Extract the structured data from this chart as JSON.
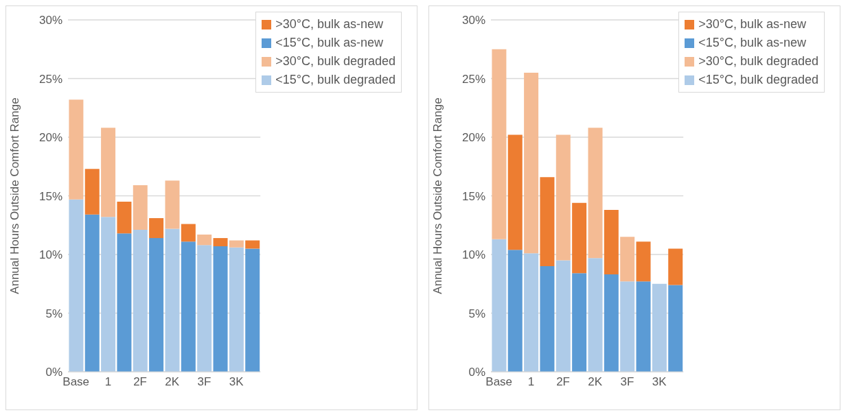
{
  "chart_data": [
    {
      "type": "bar",
      "stacked": true,
      "ylabel": "Annual Hours Outside Comfort Range",
      "categories": [
        "Base",
        null,
        "1",
        null,
        "2F",
        null,
        "2K",
        null,
        "3F",
        null,
        "3K",
        null
      ],
      "ylim": [
        0,
        30
      ],
      "yticks": [
        {
          "value": 0,
          "label": "0%"
        },
        {
          "value": 5,
          "label": "5%"
        },
        {
          "value": 10,
          "label": "10%"
        },
        {
          "value": 15,
          "label": "15%"
        },
        {
          "value": 20,
          "label": "20%"
        },
        {
          "value": 25,
          "label": "25%"
        },
        {
          "value": 30,
          "label": "30%"
        }
      ],
      "grid": "y",
      "legend": "top right",
      "series": [
        {
          "name": "<15°C, bulk degraded",
          "color": "#aecbe8",
          "values": [
            14.7,
            null,
            13.2,
            null,
            12.1,
            null,
            12.2,
            null,
            10.8,
            null,
            10.6,
            null
          ]
        },
        {
          "name": ">30°C, bulk degraded",
          "color": "#f4bb94",
          "values": [
            8.5,
            null,
            7.6,
            null,
            3.8,
            null,
            4.1,
            null,
            0.9,
            null,
            0.6,
            null
          ]
        },
        {
          "name": "<15°C, bulk as-new",
          "color": "#5b9bd5",
          "values": [
            null,
            13.4,
            null,
            11.8,
            null,
            11.4,
            null,
            11.1,
            null,
            10.7,
            null,
            10.5
          ]
        },
        {
          "name": ">30°C, bulk as-new",
          "color": "#ed7d31",
          "values": [
            null,
            3.9,
            null,
            2.7,
            null,
            1.7,
            null,
            1.5,
            null,
            0.7,
            null,
            0.7
          ]
        }
      ]
    },
    {
      "type": "bar",
      "stacked": true,
      "ylabel": "Annual Hours Outside Comfort Range",
      "categories": [
        "Base",
        null,
        "1",
        null,
        "2F",
        null,
        "2K",
        null,
        "3F",
        null,
        "3K",
        null
      ],
      "ylim": [
        0,
        30
      ],
      "yticks": [
        {
          "value": 0,
          "label": "0%"
        },
        {
          "value": 5,
          "label": "5%"
        },
        {
          "value": 10,
          "label": "10%"
        },
        {
          "value": 15,
          "label": "15%"
        },
        {
          "value": 20,
          "label": "20%"
        },
        {
          "value": 25,
          "label": "25%"
        },
        {
          "value": 30,
          "label": "30%"
        }
      ],
      "grid": "y",
      "legend": "top right",
      "series": [
        {
          "name": "<15°C, bulk degraded",
          "color": "#aecbe8",
          "values": [
            11.3,
            null,
            10.1,
            null,
            9.5,
            null,
            9.7,
            null,
            7.7,
            null,
            7.5,
            null
          ]
        },
        {
          "name": ">30°C, bulk degraded",
          "color": "#f4bb94",
          "values": [
            16.2,
            null,
            15.4,
            null,
            10.7,
            null,
            11.1,
            null,
            3.8,
            null,
            0,
            null
          ]
        },
        {
          "name": "<15°C, bulk as-new",
          "color": "#5b9bd5",
          "values": [
            null,
            10.4,
            null,
            9.0,
            null,
            8.4,
            null,
            8.3,
            null,
            7.7,
            null,
            7.4
          ]
        },
        {
          "name": ">30°C, bulk as-new",
          "color": "#ed7d31",
          "values": [
            null,
            9.8,
            null,
            7.6,
            null,
            6.0,
            null,
            5.5,
            null,
            3.4,
            null,
            3.1
          ]
        }
      ]
    }
  ]
}
